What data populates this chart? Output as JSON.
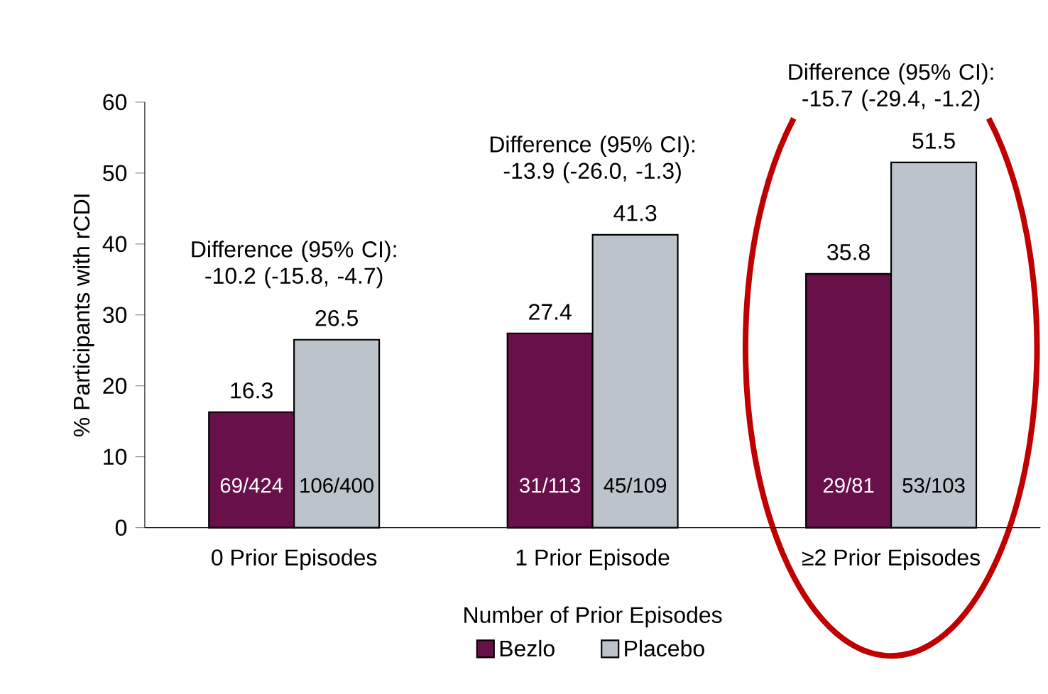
{
  "chart_data": {
    "type": "bar",
    "xlabel": "Number of Prior Episodes",
    "ylabel": "% Participants with rCDI",
    "categories": [
      "0 Prior Episodes",
      "1 Prior Episode",
      "≥2 Prior Episodes"
    ],
    "series": [
      {
        "name": "Bezlo",
        "color": "#68104a",
        "values": [
          16.3,
          27.4,
          35.8
        ]
      },
      {
        "name": "Placebo",
        "color": "#bcc3ca",
        "values": [
          26.5,
          41.3,
          51.5
        ]
      }
    ],
    "ylim": [
      0,
      60
    ],
    "yticks": [
      0,
      10,
      20,
      30,
      40,
      50,
      60
    ],
    "data_labels": true,
    "grid": false,
    "legend": "bottom",
    "annotations": [
      "Difference (95% CI): -10.2 (-15.8, -4.7)",
      "Difference (95% CI): -13.9 (-26.0, -1.3)",
      "Difference (95% CI): -15.7 (-29.4, -1.2)",
      {
        "text": "69/424",
        "x": "0 Prior Episodes",
        "y": 6
      },
      {
        "text": "106/400",
        "x": "0 Prior Episodes",
        "y": 6
      },
      {
        "text": "31/113",
        "x": "1 Prior Episode",
        "y": 6
      },
      {
        "text": "45/109",
        "x": "1 Prior Episode",
        "y": 6
      },
      {
        "text": "29/81",
        "x": "≥2 Prior Episodes",
        "y": 6
      },
      {
        "text": "53/103",
        "x": "≥2 Prior Episodes",
        "y": 6
      }
    ]
  }
}
